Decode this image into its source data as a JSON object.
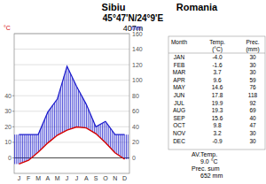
{
  "chart_data": {
    "type": "line",
    "title": "Sibiu",
    "annotations": [
      "Romania",
      "45°47'N/24°9'E",
      "407m"
    ],
    "y_label": "°C",
    "y2_label": "mm",
    "categories": [
      "J",
      "F",
      "M",
      "A",
      "M",
      "J",
      "J",
      "A",
      "S",
      "O",
      "N",
      "D"
    ],
    "series": [
      {
        "name": "Temp.",
        "color": "#d40000",
        "values": [
          -4.0,
          -1.6,
          3.7,
          9.6,
          14.6,
          17.8,
          19.9,
          19.3,
          15.6,
          9.8,
          3.2,
          -0.9
        ]
      },
      {
        "name": "Prec.",
        "color": "#1a1acc",
        "axis": "y2",
        "values": [
          30,
          30,
          30,
          59,
          76,
          118,
          92,
          69,
          40,
          47,
          30,
          30
        ]
      }
    ],
    "ylim": [
      -10,
      80
    ],
    "yticks": [
      0,
      10,
      20,
      30,
      40
    ],
    "y2lim": [
      -20,
      160
    ],
    "y2ticks": [
      0,
      20,
      40,
      60,
      80,
      100,
      120,
      140,
      160
    ],
    "grid": true
  },
  "table": {
    "header": [
      [
        "Month"
      ],
      [
        "Temp.",
        "(°C)"
      ],
      [
        "Prec.",
        "(mm)"
      ]
    ],
    "rows": [
      [
        "JAN",
        "-4.0",
        "30"
      ],
      [
        "FEB",
        "-1.6",
        "30"
      ],
      [
        "MAR",
        "3.7",
        "30"
      ],
      [
        "APR",
        "9.6",
        "59"
      ],
      [
        "MAY",
        "14.6",
        "76"
      ],
      [
        "JUN",
        "17.8",
        "118"
      ],
      [
        "JUL",
        "19.9",
        "92"
      ],
      [
        "AUG",
        "19.3",
        "69"
      ],
      [
        "SEP",
        "15.6",
        "40"
      ],
      [
        "OCT",
        "9.8",
        "47"
      ],
      [
        "NOV",
        "3.2",
        "30"
      ],
      [
        "DEC",
        "-0.9",
        "30"
      ]
    ],
    "footer": [
      [
        "AV.Temp.",
        "9.0 °C"
      ],
      [
        "Prec. sum",
        "652 mm"
      ]
    ]
  }
}
